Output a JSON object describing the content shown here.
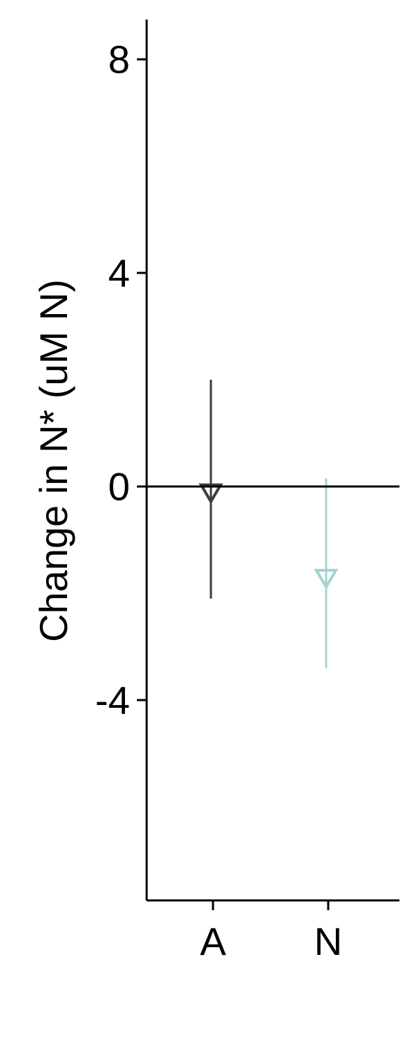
{
  "chart_data": {
    "type": "scatter",
    "categories": [
      "A",
      "N"
    ],
    "ylabel": "Change in N* (uM N)",
    "xlabel": "",
    "ylim": [
      -7.7,
      8.7
    ],
    "yticks": [
      8,
      4,
      0,
      -4
    ],
    "ytick_labels": [
      "8",
      "4",
      "0",
      "-4"
    ],
    "reference_line": 0,
    "grid": false,
    "legend": "none",
    "series": [
      {
        "category": "A",
        "value": -0.1,
        "error_low": -2.1,
        "error_high": 2.0,
        "marker": "down-triangle-open",
        "color": "#3d3d3d"
      },
      {
        "category": "N",
        "value": -1.7,
        "error_low": -3.4,
        "error_high": 0.15,
        "marker": "down-triangle-open",
        "color": "#a3d3d3"
      }
    ]
  }
}
